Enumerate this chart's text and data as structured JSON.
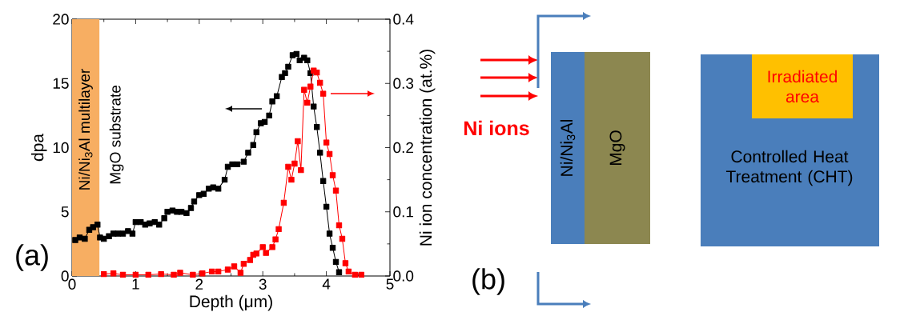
{
  "chart_data": [
    {
      "type": "line",
      "xlabel": "Depth (μm)",
      "ylabel": "dpa",
      "y2label": "Ni ion concentration (at.%)",
      "xlim": [
        0,
        5
      ],
      "xticks": [
        0,
        1,
        2,
        3,
        4,
        5
      ],
      "ylim": [
        0,
        20
      ],
      "yticks": [
        0,
        5,
        10,
        15,
        20
      ],
      "y2lim": [
        0,
        0.4
      ],
      "y2ticks": [
        {
          "value": 0,
          "label": "0.0"
        },
        {
          "value": 0.1,
          "label": "0.1"
        },
        {
          "value": 0.2,
          "label": "0.2"
        },
        {
          "value": 0.3,
          "label": "0.3"
        },
        {
          "value": 0.4,
          "label": "0.4"
        }
      ],
      "marker": "square",
      "line_style": "solid",
      "bands": [
        {
          "axis": "x",
          "from": 0,
          "to": 0.43,
          "label": "Ni/Ni$_{3}$Al multilayer",
          "color": "#f7ae62"
        }
      ],
      "annotations": [
        "MgO substrate",
        "(a)"
      ],
      "series": [
        {
          "color": "#000000",
          "x": [
            0.05,
            0.12,
            0.2,
            0.27,
            0.33,
            0.4,
            0.44,
            0.5,
            0.58,
            0.65,
            0.72,
            0.8,
            0.88,
            0.95,
            1.0,
            1.08,
            1.15,
            1.22,
            1.3,
            1.37,
            1.45,
            1.5,
            1.58,
            1.65,
            1.72,
            1.8,
            1.87,
            1.92,
            2.0,
            2.07,
            2.15,
            2.22,
            2.3,
            2.4,
            2.45,
            2.52,
            2.6,
            2.7,
            2.77,
            2.85,
            2.9,
            2.97,
            3.03,
            3.1,
            3.15,
            3.22,
            3.3,
            3.35,
            3.4,
            3.47,
            3.53,
            3.58,
            3.65,
            3.7,
            3.75,
            3.8,
            3.85,
            3.9,
            3.95,
            4.0,
            4.05,
            4.1,
            4.15,
            4.2
          ],
          "values": [
            2.8,
            3.0,
            2.9,
            3.6,
            3.8,
            4.0,
            3.0,
            2.9,
            3.1,
            3.3,
            3.3,
            3.3,
            3.5,
            3.3,
            4.2,
            4.2,
            4.0,
            4.1,
            4.2,
            4.0,
            4.5,
            5.0,
            5.1,
            5.0,
            5.0,
            4.9,
            5.3,
            5.8,
            6.3,
            6.4,
            6.8,
            6.9,
            6.8,
            7.5,
            8.5,
            8.7,
            8.7,
            8.9,
            9.6,
            10.2,
            11.2,
            11.9,
            12.0,
            12.5,
            13.6,
            14.0,
            15.5,
            15.8,
            16.3,
            17.2,
            17.3,
            16.8,
            17.0,
            16.8,
            15.8,
            13.2,
            11.6,
            9.6,
            7.4,
            5.4,
            3.3,
            2.2,
            1.1,
            0.3
          ]
        },
        {
          "color": "#ff0000",
          "axis": "y2",
          "x": [
            0.5,
            0.65,
            0.8,
            1.0,
            1.2,
            1.4,
            1.6,
            1.7,
            1.9,
            2.05,
            2.2,
            2.3,
            2.45,
            2.55,
            2.65,
            2.7,
            2.8,
            2.85,
            2.9,
            3.0,
            3.05,
            3.15,
            3.2,
            3.25,
            3.33,
            3.4,
            3.45,
            3.5,
            3.55,
            3.6,
            3.65,
            3.7,
            3.75,
            3.8,
            3.85,
            3.9,
            3.95,
            4.0,
            4.05,
            4.1,
            4.15,
            4.2,
            4.25,
            4.3,
            4.35,
            4.45,
            4.55
          ],
          "values": [
            0.003,
            0.004,
            0.002,
            0.002,
            0.002,
            0.003,
            0.002,
            0.005,
            0.002,
            0.004,
            0.007,
            0.007,
            0.01,
            0.015,
            0.005,
            0.019,
            0.025,
            0.033,
            0.035,
            0.045,
            0.036,
            0.045,
            0.057,
            0.073,
            0.114,
            0.17,
            0.15,
            0.175,
            0.21,
            0.165,
            0.29,
            0.27,
            0.295,
            0.32,
            0.317,
            0.301,
            0.284,
            0.208,
            0.19,
            0.157,
            0.133,
            0.079,
            0.058,
            0.02,
            0.007,
            0.002,
            0.002
          ]
        }
      ]
    },
    {
      "type": "other",
      "annotations": [
        "(b)",
        "Ni ions",
        "Ni/Ni$_{3}$Al",
        "MgO",
        "Irradiated area",
        "Controlled Heat Treatment (CHT)"
      ]
    }
  ]
}
